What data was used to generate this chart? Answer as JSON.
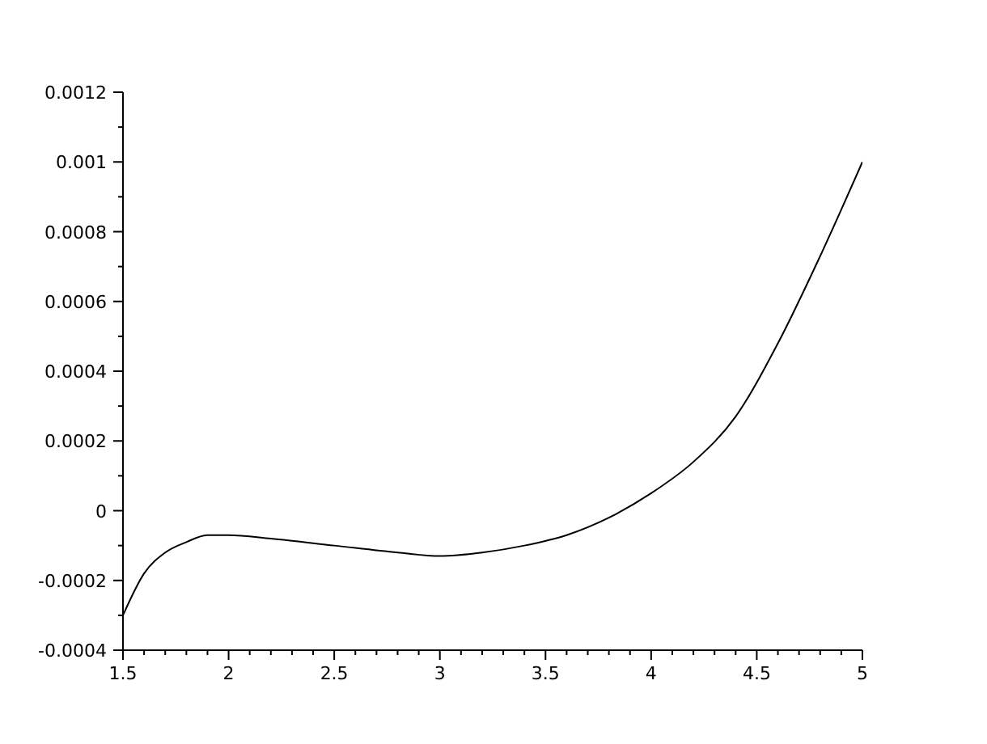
{
  "chart_data": {
    "type": "line",
    "x": [
      1.5,
      1.6,
      1.7,
      1.8,
      1.9,
      2.0,
      2.2,
      2.5,
      2.8,
      3.0,
      3.2,
      3.4,
      3.6,
      3.8,
      4.0,
      4.2,
      4.4,
      4.6,
      4.8,
      5.0
    ],
    "series": [
      {
        "color": "#000000",
        "values": [
          -0.0003,
          -0.00018,
          -0.00012,
          -9e-05,
          -7e-05,
          -7e-05,
          -8e-05,
          -0.0001,
          -0.00012,
          -0.00013,
          -0.00012,
          -0.0001,
          -7e-05,
          -2e-05,
          5e-05,
          0.00014,
          0.00027,
          0.00048,
          0.00073,
          0.001
        ]
      }
    ],
    "xlim": [
      1.5,
      5
    ],
    "xticks": [
      1.5,
      {
        "value": 1.6,
        "label": null
      },
      {
        "value": 1.7,
        "label": null
      },
      {
        "value": 1.8,
        "label": null
      },
      {
        "value": 1.9,
        "label": null
      },
      2,
      {
        "value": 2.1,
        "label": null
      },
      {
        "value": 2.2,
        "label": null
      },
      {
        "value": 2.3,
        "label": null
      },
      {
        "value": 2.4,
        "label": null
      },
      2.5,
      {
        "value": 2.6,
        "label": null
      },
      {
        "value": 2.7,
        "label": null
      },
      {
        "value": 2.8,
        "label": null
      },
      {
        "value": 2.9,
        "label": null
      },
      3,
      {
        "value": 3.1,
        "label": null
      },
      {
        "value": 3.2,
        "label": null
      },
      {
        "value": 3.3,
        "label": null
      },
      {
        "value": 3.4,
        "label": null
      },
      3.5,
      {
        "value": 3.6,
        "label": null
      },
      {
        "value": 3.7,
        "label": null
      },
      {
        "value": 3.8,
        "label": null
      },
      {
        "value": 3.9,
        "label": null
      },
      4,
      {
        "value": 4.1,
        "label": null
      },
      {
        "value": 4.2,
        "label": null
      },
      {
        "value": 4.3,
        "label": null
      },
      {
        "value": 4.4,
        "label": null
      },
      4.5,
      {
        "value": 4.6,
        "label": null
      },
      {
        "value": 4.7,
        "label": null
      },
      {
        "value": 4.8,
        "label": null
      },
      {
        "value": 4.9,
        "label": null
      },
      5
    ],
    "ylim": [
      -0.0004,
      0.0012
    ],
    "yticks": [
      -0.0004,
      {
        "value": -0.0003,
        "label": null
      },
      -0.0002,
      {
        "value": -0.0001,
        "label": null
      },
      0,
      {
        "value": 0.0001,
        "label": null
      },
      0.0002,
      {
        "value": 0.0003,
        "label": null
      },
      0.0004,
      {
        "value": 0.0005,
        "label": null
      },
      0.0006,
      {
        "value": 0.0007,
        "label": null
      },
      0.0008,
      {
        "value": 0.0009,
        "label": null
      },
      0.001,
      {
        "value": 0.0011,
        "label": null
      },
      0.0012
    ],
    "grid": false,
    "legend": false,
    "marker": "none",
    "line_style": "solid"
  }
}
